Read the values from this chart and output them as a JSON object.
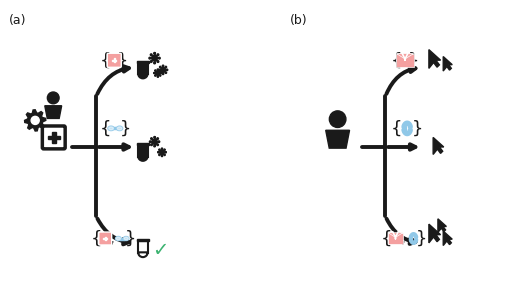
{
  "bg_color": "#ffffff",
  "label_a": "(a)",
  "label_b": "(b)",
  "pink": "#F4A0A0",
  "blue": "#90C8E8",
  "green": "#3CB371",
  "dark": "#1a1a1a",
  "lw_main": 2.8,
  "lw_thin": 1.8
}
